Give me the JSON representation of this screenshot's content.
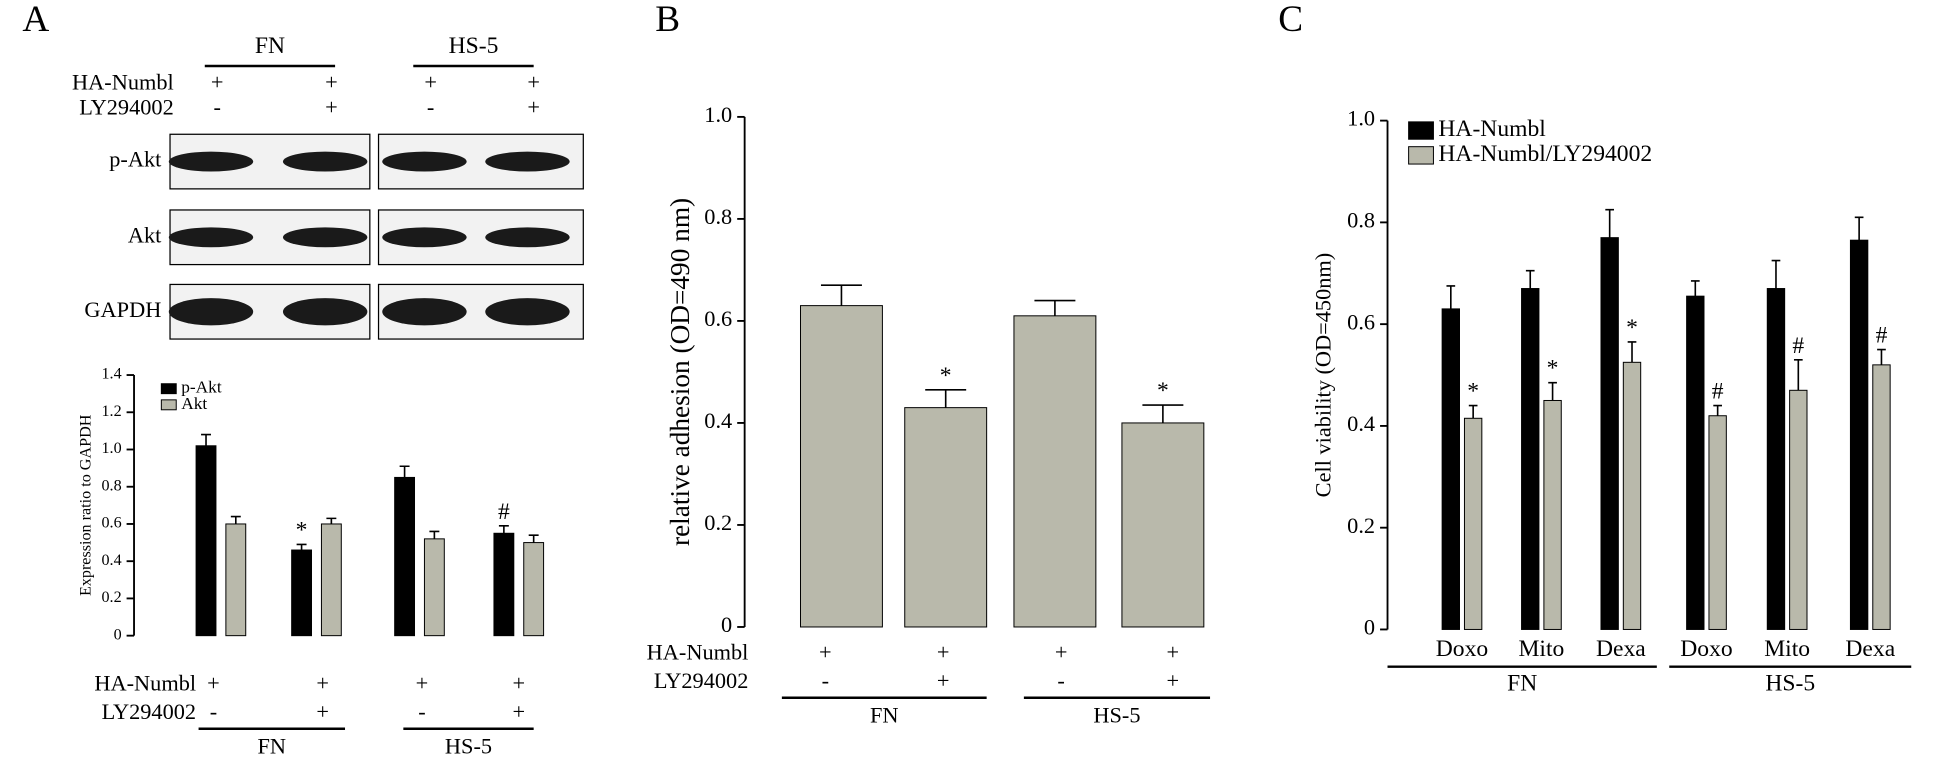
{
  "panel_labels": [
    "A",
    "B",
    "C"
  ],
  "blot": {
    "groups": [
      "FN",
      "HS-5"
    ],
    "conditions": [
      {
        "name": "HA-Numbl",
        "signs": [
          "+",
          "+",
          "+",
          "+"
        ]
      },
      {
        "name": "LY294002",
        "signs": [
          "-",
          "+",
          "-",
          "+"
        ]
      }
    ],
    "rows": [
      "p-Akt",
      "Akt",
      "GAPDH"
    ]
  },
  "chart_data": [
    {
      "type": "bar",
      "y_label": "Expression ratio to GAPDH",
      "ylim": [
        0,
        1.4
      ],
      "yticks": [
        0,
        0.2,
        0.4,
        0.6,
        0.8,
        {
          "value": 1,
          "label": "1.0"
        },
        1.2,
        1.4
      ],
      "series": [
        {
          "name": "p-Akt",
          "color": "#000000",
          "values": [
            1.02,
            0.46,
            0.85,
            0.55
          ],
          "errors": [
            0.06,
            0.03,
            0.06,
            0.04
          ],
          "marks": [
            null,
            "*",
            null,
            "#"
          ]
        },
        {
          "name": "Akt",
          "color": "#b9b9ab",
          "values": [
            0.6,
            0.6,
            0.52,
            0.5
          ],
          "errors": [
            0.04,
            0.03,
            0.04,
            0.04
          ],
          "marks": [
            null,
            null,
            null,
            null
          ]
        }
      ],
      "conditions": [
        {
          "name": "HA-Numbl",
          "signs": [
            "+",
            "+",
            "+",
            "+"
          ]
        },
        {
          "name": "LY294002",
          "signs": [
            "-",
            "+",
            "-",
            "+"
          ]
        }
      ],
      "groups": [
        "FN",
        "HS-5"
      ]
    },
    {
      "type": "bar",
      "y_label": "relative adhesion (OD=490 nm)",
      "ylim": [
        0,
        1
      ],
      "yticks": [
        0,
        0.2,
        0.4,
        0.6,
        0.8,
        {
          "value": 1,
          "label": "1.0"
        }
      ],
      "series": [
        {
          "color": "#b9b9ab",
          "values": [
            0.63,
            0.43,
            0.61,
            0.4
          ],
          "errors": [
            0.04,
            0.035,
            0.03,
            0.035
          ],
          "marks": [
            null,
            "*",
            null,
            "*"
          ]
        }
      ],
      "conditions": [
        {
          "name": "HA-Numbl",
          "signs": [
            "+",
            "+",
            "+",
            "+"
          ]
        },
        {
          "name": "LY294002",
          "signs": [
            "-",
            "+",
            "-",
            "+"
          ]
        }
      ],
      "groups": [
        "FN",
        "HS-5"
      ]
    },
    {
      "type": "bar",
      "y_label": "Cell viability (OD=450nm)",
      "ylim": [
        0,
        1
      ],
      "yticks": [
        0,
        0.2,
        0.4,
        0.6,
        0.8,
        {
          "value": 1,
          "label": "1.0"
        }
      ],
      "categories": [
        "Doxo",
        "Mito",
        "Dexa",
        "Doxo",
        "Mito",
        "Dexa"
      ],
      "series": [
        {
          "name": "HA-Numbl",
          "color": "#000000",
          "values": [
            0.63,
            0.67,
            0.77,
            0.655,
            0.67,
            0.765
          ],
          "errors": [
            0.045,
            0.035,
            0.055,
            0.03,
            0.055,
            0.045
          ],
          "marks": [
            null,
            null,
            null,
            null,
            null,
            null
          ]
        },
        {
          "name": "HA-Numbl/LY294002",
          "color": "#b9b9ab",
          "values": [
            0.415,
            0.45,
            0.525,
            0.42,
            0.47,
            0.52
          ],
          "errors": [
            0.025,
            0.035,
            0.04,
            0.02,
            0.06,
            0.03
          ],
          "marks": [
            "*",
            "*",
            "*",
            "#",
            "#",
            "#"
          ]
        }
      ],
      "groups": [
        "FN",
        "HS-5"
      ],
      "legend": "top-left"
    }
  ]
}
